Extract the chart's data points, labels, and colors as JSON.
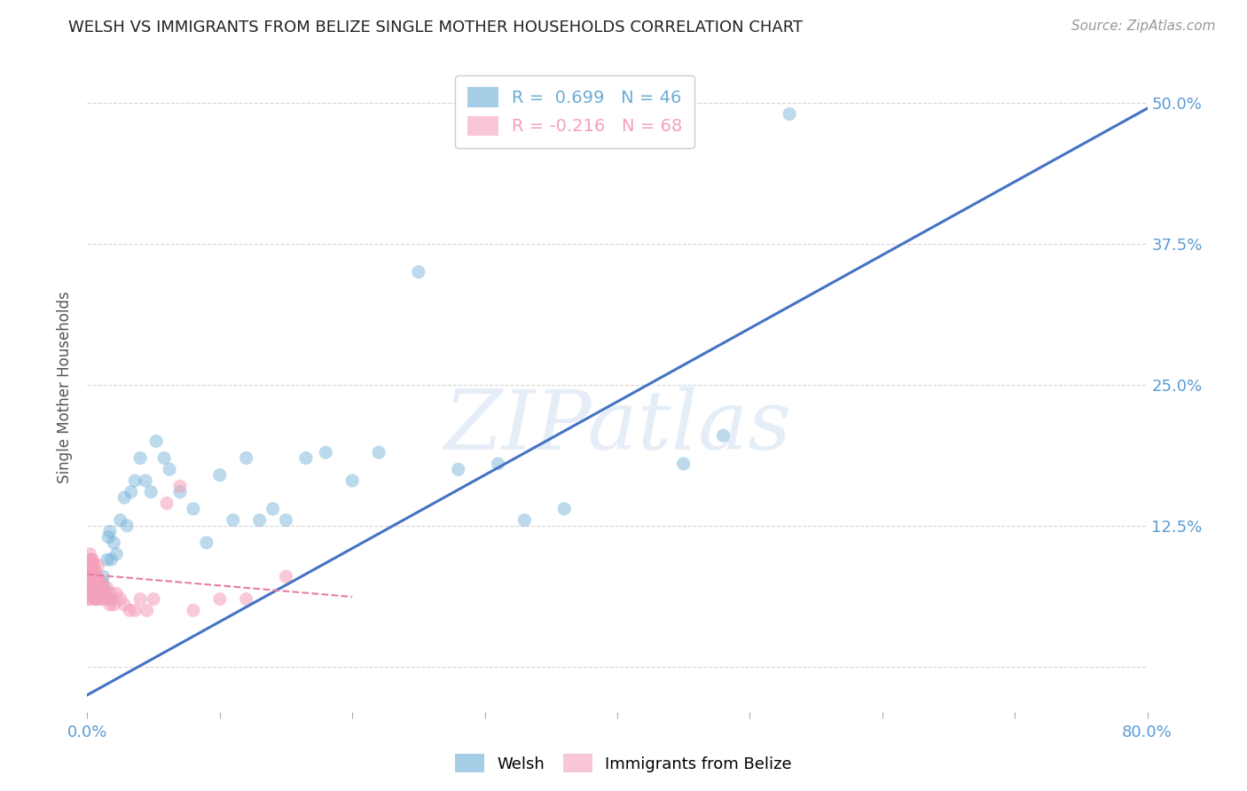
{
  "title": "WELSH VS IMMIGRANTS FROM BELIZE SINGLE MOTHER HOUSEHOLDS CORRELATION CHART",
  "source": "Source: ZipAtlas.com",
  "ylabel": "Single Mother Households",
  "watermark": "ZIPatlas",
  "legend_entries": [
    {
      "label": "Welsh",
      "R": 0.699,
      "N": 46,
      "color": "#6baed6"
    },
    {
      "label": "Immigrants from Belize",
      "R": -0.216,
      "N": 68,
      "color": "#f4a0bb"
    }
  ],
  "xlim": [
    0.0,
    0.8
  ],
  "ylim": [
    -0.04,
    0.535
  ],
  "yticks": [
    0.0,
    0.125,
    0.25,
    0.375,
    0.5
  ],
  "ytick_labels": [
    "",
    "12.5%",
    "25.0%",
    "37.5%",
    "50.0%"
  ],
  "xticks": [
    0.0,
    0.1,
    0.2,
    0.3,
    0.4,
    0.5,
    0.6,
    0.7,
    0.8
  ],
  "xtick_labels": [
    "0.0%",
    "",
    "",
    "",
    "",
    "",
    "",
    "",
    "80.0%"
  ],
  "blue_color": "#6baed6",
  "pink_color": "#f4a0bb",
  "blue_scatter": {
    "x": [
      0.003,
      0.005,
      0.007,
      0.009,
      0.01,
      0.011,
      0.012,
      0.013,
      0.015,
      0.016,
      0.017,
      0.018,
      0.02,
      0.022,
      0.025,
      0.028,
      0.03,
      0.033,
      0.036,
      0.04,
      0.044,
      0.048,
      0.052,
      0.058,
      0.062,
      0.07,
      0.08,
      0.09,
      0.1,
      0.11,
      0.12,
      0.13,
      0.14,
      0.15,
      0.165,
      0.18,
      0.2,
      0.22,
      0.25,
      0.28,
      0.31,
      0.33,
      0.36,
      0.45,
      0.48,
      0.53
    ],
    "y": [
      0.07,
      0.065,
      0.06,
      0.065,
      0.07,
      0.075,
      0.08,
      0.07,
      0.095,
      0.115,
      0.12,
      0.095,
      0.11,
      0.1,
      0.13,
      0.15,
      0.125,
      0.155,
      0.165,
      0.185,
      0.165,
      0.155,
      0.2,
      0.185,
      0.175,
      0.155,
      0.14,
      0.11,
      0.17,
      0.13,
      0.185,
      0.13,
      0.14,
      0.13,
      0.185,
      0.19,
      0.165,
      0.19,
      0.35,
      0.175,
      0.18,
      0.13,
      0.14,
      0.18,
      0.205,
      0.49
    ]
  },
  "pink_scatter": {
    "x": [
      0.0,
      0.0,
      0.0,
      0.001,
      0.001,
      0.001,
      0.001,
      0.001,
      0.002,
      0.002,
      0.002,
      0.002,
      0.002,
      0.003,
      0.003,
      0.003,
      0.003,
      0.003,
      0.004,
      0.004,
      0.004,
      0.004,
      0.005,
      0.005,
      0.005,
      0.005,
      0.006,
      0.006,
      0.006,
      0.006,
      0.007,
      0.007,
      0.007,
      0.007,
      0.008,
      0.008,
      0.008,
      0.008,
      0.009,
      0.009,
      0.01,
      0.01,
      0.011,
      0.011,
      0.012,
      0.012,
      0.013,
      0.014,
      0.015,
      0.016,
      0.017,
      0.018,
      0.019,
      0.02,
      0.022,
      0.025,
      0.028,
      0.032,
      0.036,
      0.04,
      0.045,
      0.05,
      0.06,
      0.07,
      0.08,
      0.1,
      0.12,
      0.15
    ],
    "y": [
      0.06,
      0.065,
      0.075,
      0.08,
      0.085,
      0.07,
      0.06,
      0.065,
      0.09,
      0.095,
      0.1,
      0.075,
      0.065,
      0.08,
      0.085,
      0.095,
      0.065,
      0.07,
      0.09,
      0.085,
      0.095,
      0.065,
      0.075,
      0.09,
      0.06,
      0.07,
      0.08,
      0.065,
      0.085,
      0.06,
      0.075,
      0.08,
      0.065,
      0.07,
      0.06,
      0.09,
      0.07,
      0.08,
      0.065,
      0.075,
      0.07,
      0.075,
      0.06,
      0.065,
      0.07,
      0.065,
      0.06,
      0.065,
      0.07,
      0.06,
      0.055,
      0.065,
      0.06,
      0.055,
      0.065,
      0.06,
      0.055,
      0.05,
      0.05,
      0.06,
      0.05,
      0.06,
      0.145,
      0.16,
      0.05,
      0.06,
      0.06,
      0.08
    ]
  },
  "blue_line_x": [
    0.0,
    0.8
  ],
  "blue_line_y": [
    -0.025,
    0.495
  ],
  "pink_line_x": [
    0.0,
    0.2
  ],
  "pink_line_y": [
    0.082,
    0.062
  ],
  "background_color": "#ffffff",
  "grid_color": "#cccccc",
  "title_color": "#222222",
  "axis_label_color": "#555555",
  "tick_label_color": "#5b9bd5",
  "source_color": "#999999"
}
